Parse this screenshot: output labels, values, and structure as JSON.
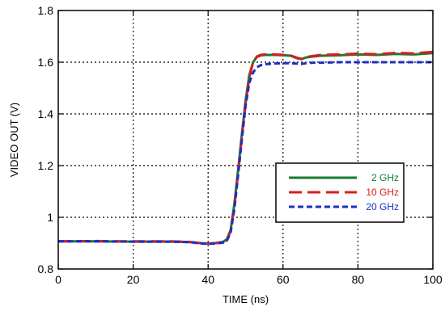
{
  "chart_data": {
    "type": "line",
    "title": "",
    "xlabel": "TIME (ns)",
    "ylabel": "VIDEO OUT (V)",
    "xlim": [
      0,
      100
    ],
    "ylim": [
      0.8,
      1.8
    ],
    "x_ticks": [
      0,
      20,
      40,
      60,
      80,
      100
    ],
    "y_ticks": [
      0.8,
      1,
      1.2,
      1.4,
      1.6,
      1.8
    ],
    "x_tick_labels": [
      "0",
      "20",
      "40",
      "60",
      "80",
      "100"
    ],
    "y_tick_labels": [
      "0.8",
      "1",
      "1.2",
      "1.4",
      "1.6",
      "1.8"
    ],
    "grid": true,
    "legend_position": "center-right",
    "series": [
      {
        "name": "2 GHz",
        "color": "#1a7a2e",
        "dash": "solid",
        "x": [
          0,
          10,
          20,
          30,
          35,
          38,
          40,
          42,
          44,
          45,
          46,
          47,
          48,
          49,
          50,
          51,
          52,
          53,
          54,
          55,
          58,
          60,
          62,
          64,
          65,
          66,
          68,
          70,
          75,
          80,
          85,
          90,
          95,
          100
        ],
        "y": [
          0.907,
          0.907,
          0.906,
          0.906,
          0.904,
          0.9,
          0.898,
          0.9,
          0.905,
          0.915,
          0.95,
          1.05,
          1.18,
          1.32,
          1.45,
          1.55,
          1.6,
          1.62,
          1.626,
          1.628,
          1.628,
          1.627,
          1.625,
          1.614,
          1.612,
          1.618,
          1.622,
          1.625,
          1.627,
          1.63,
          1.628,
          1.632,
          1.63,
          1.635
        ]
      },
      {
        "name": "10 GHz",
        "color": "#d42020",
        "dash": "long-dash",
        "x": [
          0,
          10,
          20,
          30,
          35,
          38,
          40,
          42,
          44,
          45,
          46,
          47,
          48,
          49,
          50,
          51,
          52,
          53,
          54,
          55,
          58,
          60,
          62,
          64,
          65,
          66,
          68,
          70,
          75,
          80,
          85,
          90,
          95,
          100
        ],
        "y": [
          0.907,
          0.908,
          0.907,
          0.907,
          0.905,
          0.9,
          0.898,
          0.9,
          0.903,
          0.912,
          0.945,
          1.04,
          1.17,
          1.31,
          1.44,
          1.54,
          1.6,
          1.622,
          1.628,
          1.63,
          1.63,
          1.628,
          1.626,
          1.616,
          1.613,
          1.62,
          1.624,
          1.628,
          1.63,
          1.633,
          1.631,
          1.636,
          1.634,
          1.64
        ]
      },
      {
        "name": "20 GHz",
        "color": "#1c2fc7",
        "dash": "short-dash",
        "x": [
          0,
          10,
          20,
          30,
          35,
          38,
          40,
          42,
          44,
          45,
          46,
          47,
          48,
          49,
          50,
          51,
          52,
          53,
          54,
          55,
          58,
          60,
          62,
          64,
          65,
          66,
          68,
          70,
          75,
          80,
          85,
          90,
          95,
          100
        ],
        "y": [
          0.907,
          0.907,
          0.906,
          0.906,
          0.904,
          0.899,
          0.897,
          0.899,
          0.902,
          0.91,
          0.94,
          1.03,
          1.16,
          1.3,
          1.43,
          1.52,
          1.56,
          1.58,
          1.588,
          1.592,
          1.595,
          1.596,
          1.596,
          1.594,
          1.593,
          1.596,
          1.598,
          1.598,
          1.6,
          1.6,
          1.6,
          1.6,
          1.6,
          1.6
        ]
      }
    ]
  }
}
